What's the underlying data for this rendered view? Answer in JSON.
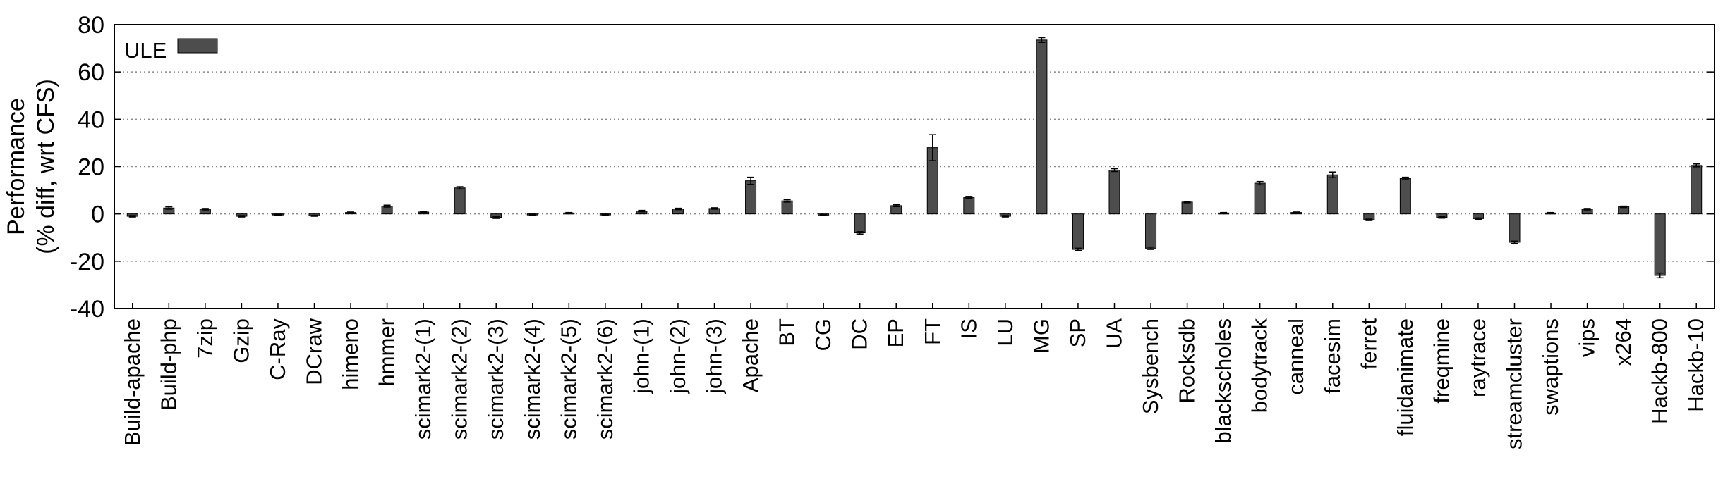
{
  "chart_data": {
    "type": "bar",
    "ylabel_lines": [
      "Performance",
      "(% diff, wrt CFS)"
    ],
    "ylim": [
      -40,
      80
    ],
    "yticks": [
      "-40",
      "-20",
      "0",
      "20",
      "40",
      "60",
      "80"
    ],
    "grid": "horizontal-dotted",
    "legend_placement": "top-left",
    "categories": [
      "Build-apache",
      "Build-php",
      "7zip",
      "Gzip",
      "C-Ray",
      "DCraw",
      "himeno",
      "hmmer",
      "scimark2-(1)",
      "scimark2-(2)",
      "scimark2-(3)",
      "scimark2-(4)",
      "scimark2-(5)",
      "scimark2-(6)",
      "john-(1)",
      "john-(2)",
      "john-(3)",
      "Apache",
      "BT",
      "CG",
      "DC",
      "EP",
      "FT",
      "IS",
      "LU",
      "MG",
      "SP",
      "UA",
      "Sysbench",
      "Rocksdb",
      "blackscholes",
      "bodytrack",
      "canneal",
      "facesim",
      "ferret",
      "fluidanimate",
      "freqmine",
      "raytrace",
      "streamcluster",
      "swaptions",
      "vips",
      "x264",
      "Hackb-800",
      "Hackb-10"
    ],
    "series": [
      {
        "name": "ULE",
        "color": "#4d4d4d",
        "values": [
          -1,
          2.5,
          2,
          -1,
          -0.3,
          -0.8,
          0.6,
          3.3,
          0.8,
          11,
          -1.5,
          -0.3,
          0.4,
          -0.3,
          1.2,
          2.1,
          2.3,
          14,
          5.5,
          -0.5,
          -8,
          3.5,
          28,
          7,
          -1,
          73.5,
          -15,
          18.5,
          -14.5,
          5,
          0.4,
          13,
          0.6,
          16.5,
          -2.5,
          15,
          -1.5,
          -2,
          -12,
          0.4,
          2,
          3,
          -26,
          20.5
        ],
        "errors": [
          0.3,
          0.5,
          0.3,
          0.3,
          0.2,
          0.2,
          0.2,
          0.4,
          0.2,
          0.5,
          0.4,
          0.2,
          0.2,
          0.2,
          0.3,
          0.3,
          0.3,
          1.5,
          0.5,
          0.2,
          0.5,
          0.4,
          5.5,
          0.4,
          0.3,
          1.0,
          0.5,
          0.6,
          0.5,
          0.3,
          0.2,
          0.7,
          0.2,
          1.2,
          0.3,
          0.5,
          0.3,
          0.3,
          0.5,
          0.2,
          0.3,
          0.3,
          1.0,
          0.6
        ]
      }
    ]
  }
}
